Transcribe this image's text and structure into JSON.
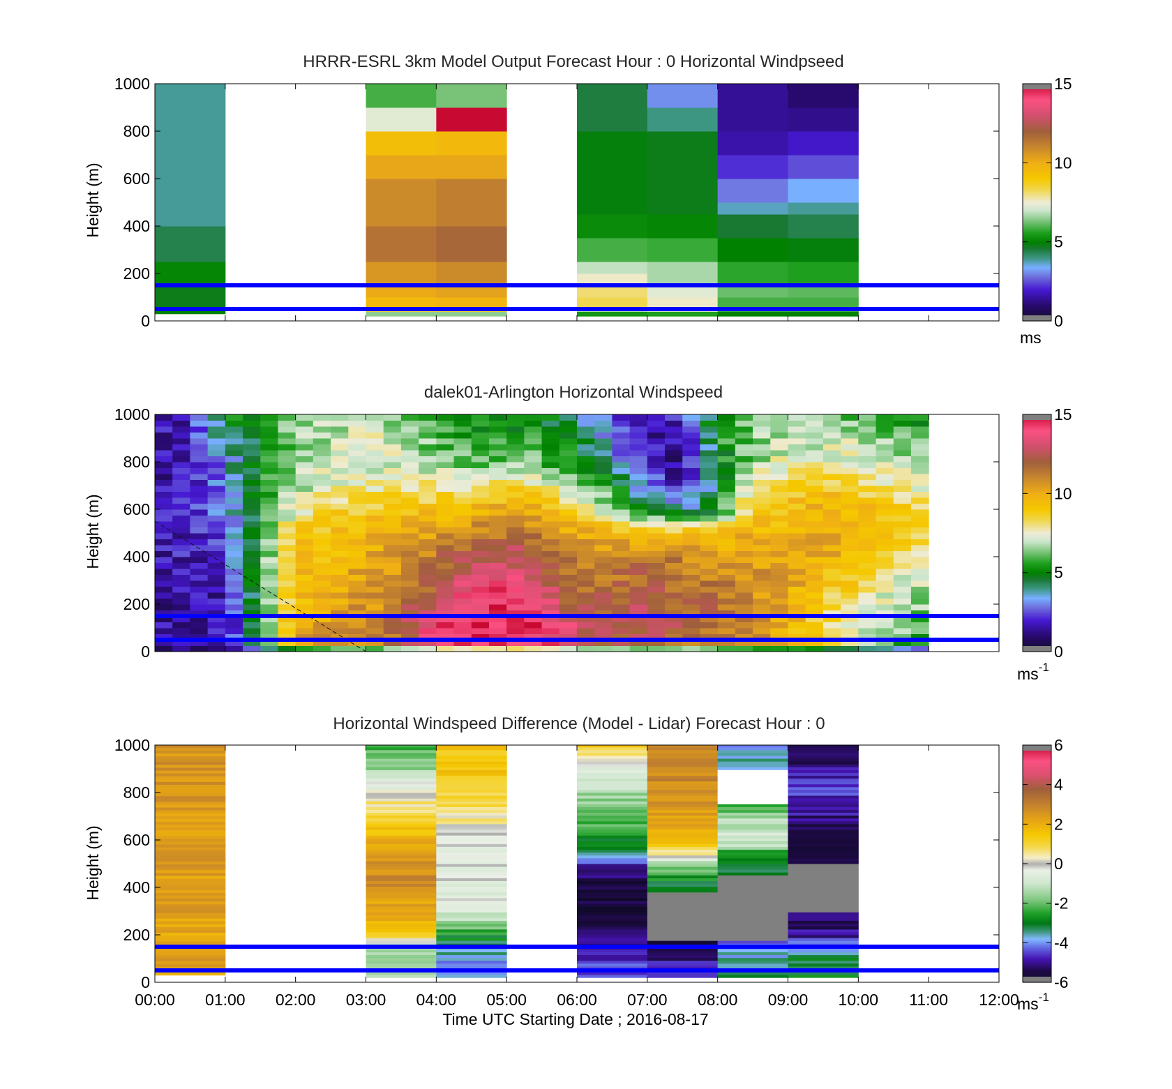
{
  "chart_data": [
    {
      "id": "model",
      "type": "heatmap",
      "title": "HRRR-ESRL 3km Model Output   Forecast Hour : 0 Horizontal Windpseed",
      "ylabel": "Height (m)",
      "xlim": [
        0,
        12
      ],
      "ylim": [
        0,
        1000
      ],
      "y_ticks": [
        "0",
        "200",
        "400",
        "600",
        "800",
        "1000"
      ],
      "colorbar": {
        "ticks": [
          "0",
          "5",
          "10",
          "15"
        ],
        "range": [
          0,
          15
        ],
        "unit": "ms"
      },
      "reference_lines_m": [
        50,
        150
      ],
      "columns": [
        {
          "t0": 0,
          "t1": 1,
          "segments": [
            {
              "y0": 30,
              "y1": 50,
              "value": 5.0
            },
            {
              "y0": 50,
              "y1": 150,
              "value": 4.8
            },
            {
              "y0": 150,
              "y1": 250,
              "value": 5.1
            },
            {
              "y0": 250,
              "y1": 400,
              "value": 4.4
            },
            {
              "y0": 400,
              "y1": 1000,
              "value": 3.9
            }
          ]
        },
        {
          "t0": 3,
          "t1": 4,
          "segments": [
            {
              "y0": 20,
              "y1": 40,
              "value": 6.5
            },
            {
              "y0": 40,
              "y1": 60,
              "value": 8.6
            },
            {
              "y0": 60,
              "y1": 100,
              "value": 9.6
            },
            {
              "y0": 100,
              "y1": 150,
              "value": 10.1
            },
            {
              "y0": 150,
              "y1": 250,
              "value": 10.6
            },
            {
              "y0": 250,
              "y1": 400,
              "value": 11.5
            },
            {
              "y0": 400,
              "y1": 600,
              "value": 10.9
            },
            {
              "y0": 600,
              "y1": 700,
              "value": 10.2
            },
            {
              "y0": 700,
              "y1": 800,
              "value": 9.4
            },
            {
              "y0": 800,
              "y1": 900,
              "value": 7.3
            },
            {
              "y0": 900,
              "y1": 1000,
              "value": 5.9
            }
          ]
        },
        {
          "t0": 4,
          "t1": 5,
          "segments": [
            {
              "y0": 20,
              "y1": 40,
              "value": 6.5
            },
            {
              "y0": 40,
              "y1": 60,
              "value": 8.6
            },
            {
              "y0": 60,
              "y1": 100,
              "value": 9.8
            },
            {
              "y0": 100,
              "y1": 150,
              "value": 10.3
            },
            {
              "y0": 150,
              "y1": 250,
              "value": 10.9
            },
            {
              "y0": 250,
              "y1": 400,
              "value": 11.8
            },
            {
              "y0": 400,
              "y1": 600,
              "value": 11.2
            },
            {
              "y0": 600,
              "y1": 700,
              "value": 10.2
            },
            {
              "y0": 700,
              "y1": 800,
              "value": 9.6
            },
            {
              "y0": 800,
              "y1": 900,
              "value": 15.2
            },
            {
              "y0": 900,
              "y1": 1000,
              "value": 6.3
            }
          ]
        },
        {
          "t0": 6,
          "t1": 7,
          "segments": [
            {
              "y0": 20,
              "y1": 40,
              "value": 5.4
            },
            {
              "y0": 40,
              "y1": 60,
              "value": 6.9
            },
            {
              "y0": 60,
              "y1": 100,
              "value": 8.3
            },
            {
              "y0": 100,
              "y1": 150,
              "value": 8.1
            },
            {
              "y0": 150,
              "y1": 200,
              "value": 7.6
            },
            {
              "y0": 200,
              "y1": 250,
              "value": 6.9
            },
            {
              "y0": 250,
              "y1": 350,
              "value": 5.9
            },
            {
              "y0": 350,
              "y1": 450,
              "value": 5.2
            },
            {
              "y0": 450,
              "y1": 800,
              "value": 4.9
            },
            {
              "y0": 800,
              "y1": 1000,
              "value": 4.5
            }
          ]
        },
        {
          "t0": 7,
          "t1": 8,
          "segments": [
            {
              "y0": 20,
              "y1": 40,
              "value": 5.6
            },
            {
              "y0": 40,
              "y1": 60,
              "value": 7.4
            },
            {
              "y0": 60,
              "y1": 100,
              "value": 7.6
            },
            {
              "y0": 100,
              "y1": 150,
              "value": 7.3
            },
            {
              "y0": 150,
              "y1": 250,
              "value": 6.7
            },
            {
              "y0": 250,
              "y1": 350,
              "value": 5.8
            },
            {
              "y0": 350,
              "y1": 450,
              "value": 5.1
            },
            {
              "y0": 450,
              "y1": 800,
              "value": 4.8
            },
            {
              "y0": 800,
              "y1": 900,
              "value": 4.0
            },
            {
              "y0": 900,
              "y1": 1000,
              "value": 3.1
            }
          ]
        },
        {
          "t0": 8,
          "t1": 9,
          "segments": [
            {
              "y0": 20,
              "y1": 40,
              "value": 5.0
            },
            {
              "y0": 40,
              "y1": 100,
              "value": 5.9
            },
            {
              "y0": 100,
              "y1": 150,
              "value": 6.2
            },
            {
              "y0": 150,
              "y1": 250,
              "value": 5.7
            },
            {
              "y0": 250,
              "y1": 350,
              "value": 5.0
            },
            {
              "y0": 350,
              "y1": 450,
              "value": 4.6
            },
            {
              "y0": 450,
              "y1": 500,
              "value": 3.7
            },
            {
              "y0": 500,
              "y1": 600,
              "value": 2.9
            },
            {
              "y0": 600,
              "y1": 700,
              "value": 2.2
            },
            {
              "y0": 700,
              "y1": 800,
              "value": 1.6
            },
            {
              "y0": 800,
              "y1": 1000,
              "value": 1.4
            }
          ]
        },
        {
          "t0": 9,
          "t1": 10,
          "segments": [
            {
              "y0": 20,
              "y1": 40,
              "value": 5.0
            },
            {
              "y0": 40,
              "y1": 100,
              "value": 5.9
            },
            {
              "y0": 100,
              "y1": 150,
              "value": 6.1
            },
            {
              "y0": 150,
              "y1": 250,
              "value": 5.6
            },
            {
              "y0": 250,
              "y1": 350,
              "value": 4.9
            },
            {
              "y0": 350,
              "y1": 450,
              "value": 4.4
            },
            {
              "y0": 450,
              "y1": 500,
              "value": 3.9
            },
            {
              "y0": 500,
              "y1": 600,
              "value": 3.4
            },
            {
              "y0": 600,
              "y1": 700,
              "value": 2.5
            },
            {
              "y0": 700,
              "y1": 800,
              "value": 1.9
            },
            {
              "y0": 800,
              "y1": 900,
              "value": 1.3
            },
            {
              "y0": 900,
              "y1": 1000,
              "value": 1.0
            }
          ]
        }
      ]
    },
    {
      "id": "lidar",
      "type": "heatmap",
      "title": "dalek01-Arlington  Horizontal Windspeed",
      "ylabel": "Height (m)",
      "xlim": [
        0,
        12
      ],
      "ylim": [
        0,
        1000
      ],
      "y_ticks": [
        "0",
        "200",
        "400",
        "600",
        "800",
        "1000"
      ],
      "colorbar": {
        "ticks": [
          "0",
          "5",
          "10",
          "15"
        ],
        "range": [
          0,
          15
        ],
        "unit": "ms",
        "unit_exp": "-1"
      },
      "reference_lines_m": [
        50,
        150
      ],
      "time_range": [
        0,
        10.95
      ],
      "time_step": 0.25,
      "height_step": 25,
      "profile_nodes_t": [
        0,
        0.5,
        1,
        1.5,
        2,
        2.5,
        3,
        3.5,
        4,
        4.5,
        5,
        5.5,
        6,
        6.5,
        7,
        7.5,
        8,
        8.5,
        9,
        9.5,
        10,
        10.5,
        11
      ],
      "profile_nodes_h": [
        0,
        100,
        200,
        300,
        400,
        500,
        600,
        700,
        800,
        900,
        1000
      ],
      "profile_values": [
        [
          2.0,
          1.5,
          1.4,
          1.5,
          1.6,
          1.7,
          1.7,
          1.6,
          1.5,
          1.6,
          1.7
        ],
        [
          2.0,
          1.6,
          1.6,
          1.7,
          1.8,
          2.0,
          1.9,
          1.8,
          1.7,
          1.8,
          1.9
        ],
        [
          1.8,
          1.5,
          1.6,
          1.8,
          2.2,
          2.6,
          3.0,
          3.1,
          3.3,
          4.0,
          5.0
        ],
        [
          6.0,
          5.5,
          5.5,
          5.6,
          5.4,
          5.4,
          5.3,
          5.2,
          5.0,
          5.0,
          5.0
        ],
        [
          10.5,
          10.0,
          9.5,
          9.3,
          9.2,
          9.0,
          7.5,
          6.5,
          6.5,
          6.5,
          6.5
        ],
        [
          10.5,
          10.5,
          10.2,
          9.8,
          9.5,
          9.3,
          8.5,
          7.5,
          7.0,
          6.8,
          6.8
        ],
        [
          11.0,
          11.0,
          10.5,
          10.5,
          10.0,
          9.8,
          9.0,
          7.8,
          7.0,
          7.2,
          7.2
        ],
        [
          11.5,
          12.0,
          11.5,
          11.0,
          10.5,
          10.0,
          9.0,
          8.0,
          7.0,
          7.0,
          6.5
        ],
        [
          13.5,
          14.5,
          13.0,
          12.0,
          11.5,
          10.5,
          9.3,
          8.0,
          6.5,
          6.0,
          5.5
        ],
        [
          14.0,
          14.5,
          14.0,
          13.5,
          12.5,
          11.0,
          9.5,
          8.0,
          6.0,
          5.5,
          5.5
        ],
        [
          14.5,
          15.0,
          14.5,
          14.0,
          13.0,
          11.5,
          10.0,
          8.5,
          6.5,
          5.5,
          5.5
        ],
        [
          14.0,
          14.5,
          13.5,
          13.0,
          12.0,
          11.0,
          9.8,
          8.0,
          6.0,
          5.5,
          5.0
        ],
        [
          12.5,
          13.0,
          12.0,
          11.5,
          11.0,
          10.0,
          8.5,
          6.5,
          5.0,
          4.5,
          3.5
        ],
        [
          12.0,
          12.5,
          12.0,
          11.5,
          11.0,
          10.0,
          6.5,
          5.5,
          3.5,
          3.0,
          2.5
        ],
        [
          12.0,
          12.5,
          12.5,
          12.0,
          11.5,
          9.0,
          4.5,
          3.0,
          2.0,
          1.5,
          1.5
        ],
        [
          11.5,
          12.0,
          12.0,
          11.5,
          11.0,
          9.5,
          3.5,
          1.8,
          1.2,
          1.5,
          2.0
        ],
        [
          11.0,
          11.5,
          11.5,
          11.0,
          10.5,
          9.5,
          5.0,
          4.5,
          4.8,
          5.2,
          5.5
        ],
        [
          10.5,
          11.0,
          11.0,
          10.8,
          10.2,
          9.8,
          9.0,
          8.0,
          6.5,
          6.5,
          6.5
        ],
        [
          9.5,
          10.0,
          10.0,
          10.2,
          10.0,
          9.5,
          9.5,
          8.5,
          7.5,
          7.0,
          6.5
        ],
        [
          8.5,
          8.5,
          8.5,
          9.5,
          10.0,
          10.0,
          10.0,
          9.0,
          7.5,
          7.0,
          6.2
        ],
        [
          7.5,
          7.5,
          7.8,
          8.5,
          9.5,
          10.0,
          9.5,
          8.5,
          7.5,
          7.0,
          6.0
        ],
        [
          6.0,
          6.5,
          7.0,
          7.5,
          8.5,
          9.0,
          9.0,
          8.0,
          7.0,
          6.5,
          5.5
        ],
        [
          5.0,
          5.5,
          6.5,
          7.0,
          8.0,
          8.5,
          8.5,
          7.5,
          6.5,
          6.0,
          5.0
        ]
      ]
    },
    {
      "id": "diff",
      "type": "heatmap",
      "title": "Horizontal Windspeed Difference (Model - Lidar) Forecast Hour : 0",
      "xlabel": "Time UTC  Starting Date ; 2016-08-17",
      "ylabel": "Height (m)",
      "xlim": [
        0,
        12
      ],
      "ylim": [
        0,
        1000
      ],
      "x_ticks": [
        "00:00",
        "01:00",
        "02:00",
        "03:00",
        "04:00",
        "05:00",
        "06:00",
        "07:00",
        "08:00",
        "09:00",
        "10:00",
        "11:00",
        "12:00"
      ],
      "y_ticks": [
        "0",
        "200",
        "400",
        "600",
        "800",
        "1000"
      ],
      "colorbar": {
        "ticks": [
          "-6",
          "-4",
          "-2",
          "0",
          "2",
          "4",
          "6"
        ],
        "range": [
          -6,
          6
        ],
        "unit": "ms",
        "unit_exp": "-1"
      },
      "reference_lines_m": [
        50,
        150
      ],
      "columns": [
        {
          "t0": 0,
          "t1": 1,
          "profile_h": [
            30,
            1000
          ],
          "profile_v": [
            2.2,
            2.6
          ]
        },
        {
          "t0": 3,
          "t1": 4,
          "profile_h": [
            20,
            150,
            180,
            200,
            300,
            450,
            600,
            700,
            800,
            900,
            1000
          ],
          "profile_v": [
            -1.3,
            -1.2,
            0.0,
            1.2,
            2.1,
            2.9,
            1.8,
            1.2,
            0.0,
            -1.5,
            -2.2
          ]
        },
        {
          "t0": 4,
          "t1": 5,
          "profile_h": [
            20,
            50,
            100,
            150,
            200,
            250,
            300,
            450,
            600,
            700,
            800,
            900,
            1000
          ],
          "profile_v": [
            -4.0,
            -4.3,
            -3.8,
            -3.2,
            -2.8,
            -1.5,
            -0.6,
            -0.4,
            -0.2,
            0.5,
            1.0,
            1.5,
            1.6
          ]
        },
        {
          "t0": 6,
          "t1": 7,
          "profile_h": [
            20,
            100,
            200,
            300,
            400,
            450,
            500,
            550,
            600,
            700,
            800,
            900,
            1000
          ],
          "profile_v": [
            -4.2,
            -4.8,
            -5.2,
            -5.6,
            -5.7,
            -5.3,
            -4.6,
            -3.5,
            -2.8,
            -2.0,
            -1.4,
            -0.5,
            1.4
          ]
        },
        {
          "t0": 7,
          "t1": 8,
          "profile_h": [
            20,
            100,
            150,
            180,
            200,
            360,
            380,
            450,
            500,
            550,
            600,
            700,
            800,
            900,
            1000
          ],
          "profile_v": [
            -4.8,
            -5.0,
            -5.3,
            -5.8,
            null,
            null,
            -3.2,
            -2.6,
            -1.6,
            0.6,
            1.8,
            2.4,
            2.8,
            2.9,
            2.7
          ]
        },
        {
          "t0": 8,
          "t1": 9,
          "profile_h": [
            20,
            100,
            150,
            180,
            200,
            440,
            450,
            500,
            550,
            600,
            700,
            750,
            800,
            850,
            900,
            950,
            1000
          ],
          "profile_v": [
            -3.2,
            -3.6,
            -4.0,
            -4.4,
            null,
            null,
            -3.0,
            -3.2,
            -2.5,
            -0.5,
            -1.5,
            -2.6,
            "blank",
            "blank",
            -4.2,
            -3.6,
            -4.3
          ]
        },
        {
          "t0": 9,
          "t1": 10,
          "profile_h": [
            20,
            100,
            150,
            200,
            300,
            310,
            480,
            500,
            550,
            600,
            700,
            800,
            900,
            1000
          ],
          "profile_v": [
            -3.0,
            -3.2,
            -4.0,
            -5.0,
            -5.4,
            null,
            null,
            -5.8,
            -5.6,
            -5.6,
            -5.0,
            -4.5,
            -5.0,
            -5.5
          ]
        }
      ]
    }
  ]
}
